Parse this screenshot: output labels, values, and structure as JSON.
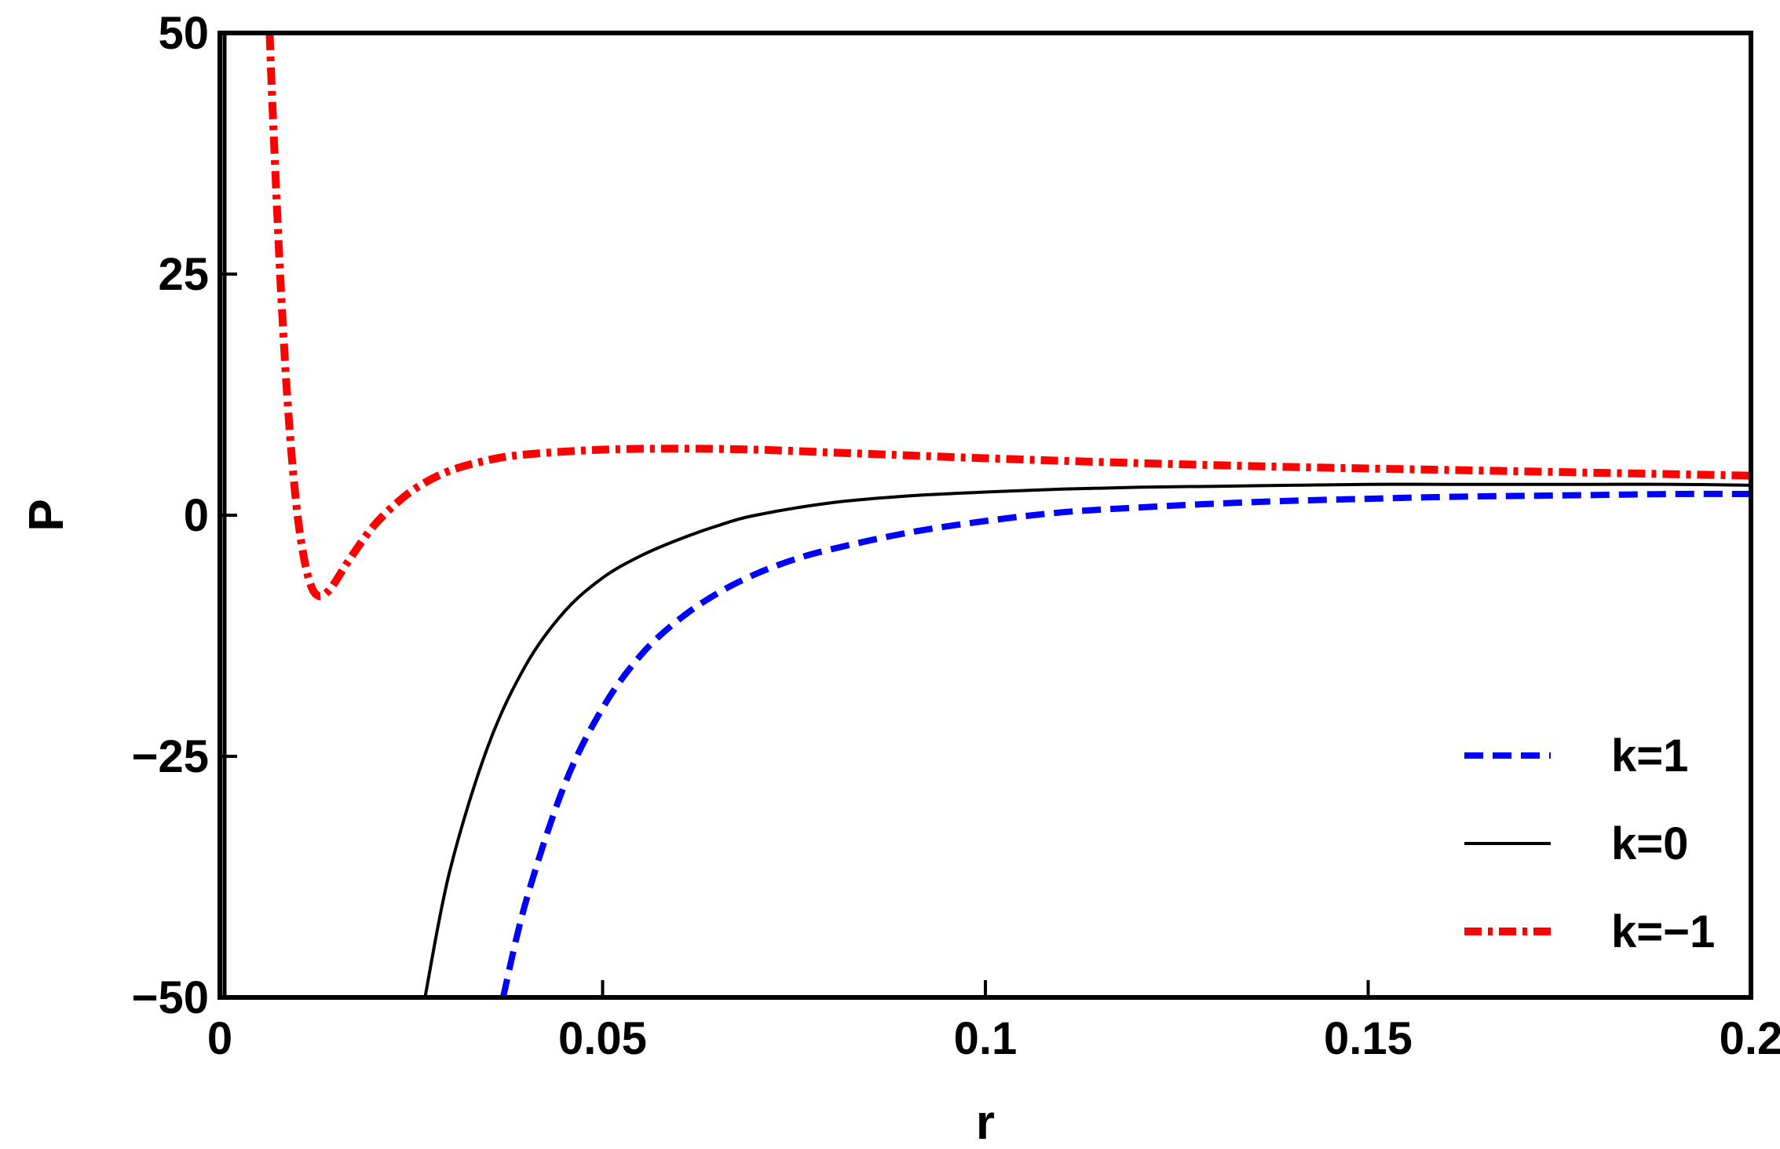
{
  "chart_data": {
    "type": "line",
    "title": "",
    "xlabel": "r",
    "ylabel": "P",
    "xlim": [
      0,
      0.2
    ],
    "ylim": [
      -50,
      50
    ],
    "xticks": [
      {
        "value": 0,
        "label": "0"
      },
      {
        "value": 0.05,
        "label": "0.05"
      },
      {
        "value": 0.1,
        "label": "0.1"
      },
      {
        "value": 0.15,
        "label": "0.15"
      },
      {
        "value": 0.2,
        "label": "0.2"
      }
    ],
    "yticks": [
      {
        "value": 50,
        "label": "50"
      },
      {
        "value": 25,
        "label": "25"
      },
      {
        "value": 0,
        "label": "0"
      },
      {
        "value": -25,
        "label": "−25"
      },
      {
        "value": -50,
        "label": "−50"
      }
    ],
    "grid": false,
    "legend_position": "bottom-right",
    "series": [
      {
        "name": "k=1",
        "color": "#0000ff",
        "style": "dashed",
        "x": [
          0.037,
          0.04,
          0.045,
          0.05,
          0.055,
          0.06,
          0.065,
          0.07,
          0.075,
          0.08,
          0.09,
          0.1,
          0.11,
          0.12,
          0.13,
          0.14,
          0.15,
          0.16,
          0.17,
          0.18,
          0.19,
          0.2
        ],
        "y": [
          -50,
          -40,
          -28,
          -20,
          -14.5,
          -10.8,
          -8.1,
          -6.1,
          -4.6,
          -3.5,
          -1.8,
          -0.6,
          0.3,
          0.8,
          1.2,
          1.5,
          1.7,
          1.9,
          2.0,
          2.1,
          2.2,
          2.2
        ]
      },
      {
        "name": "k=0",
        "color": "#000000",
        "style": "solid",
        "x": [
          0.0268,
          0.03,
          0.035,
          0.04,
          0.045,
          0.05,
          0.055,
          0.06,
          0.065,
          0.07,
          0.08,
          0.09,
          0.1,
          0.11,
          0.12,
          0.13,
          0.14,
          0.15,
          0.16,
          0.17,
          0.18,
          0.19,
          0.2
        ],
        "y": [
          -50,
          -37,
          -24,
          -15.5,
          -10,
          -6.5,
          -4.2,
          -2.5,
          -1.1,
          0,
          1.3,
          2.0,
          2.4,
          2.7,
          2.9,
          3.0,
          3.1,
          3.2,
          3.2,
          3.2,
          3.2,
          3.2,
          3.1
        ]
      },
      {
        "name": "k=−1",
        "color": "#ff0000",
        "style": "dash-dot",
        "x": [
          0.0065,
          0.007,
          0.008,
          0.009,
          0.01,
          0.011,
          0.012,
          0.013,
          0.014,
          0.015,
          0.017,
          0.02,
          0.023,
          0.026,
          0.03,
          0.035,
          0.04,
          0.05,
          0.06,
          0.07,
          0.08,
          0.09,
          0.1,
          0.12,
          0.14,
          0.16,
          0.18,
          0.2
        ],
        "y": [
          50,
          40,
          23,
          10,
          1,
          -4.5,
          -7.5,
          -8.4,
          -8,
          -7,
          -4.5,
          -1.2,
          1.2,
          3.0,
          4.6,
          5.7,
          6.3,
          6.8,
          6.9,
          6.8,
          6.5,
          6.2,
          5.9,
          5.4,
          5.0,
          4.7,
          4.4,
          4.1
        ]
      },
      {
        "name": "",
        "color": "#0000ff",
        "style": "vertical-asymptote",
        "x": [
          0,
          0
        ],
        "y": [
          -50,
          50
        ]
      }
    ]
  }
}
